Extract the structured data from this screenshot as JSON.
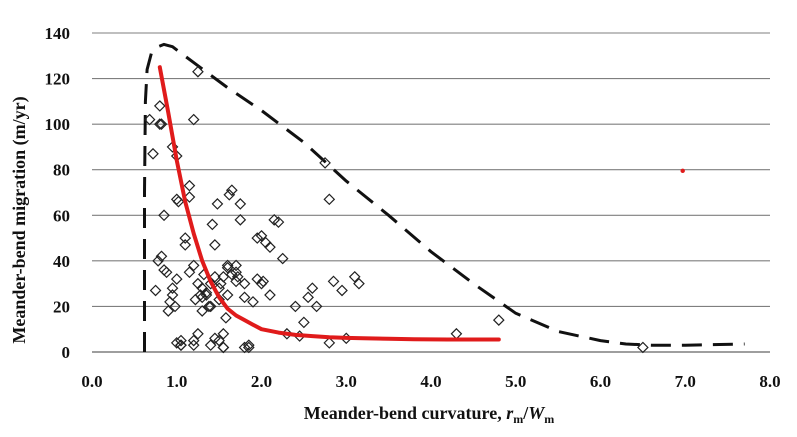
{
  "chart_data": {
    "type": "scatter",
    "xlabel": {
      "prefix": "Meander-bend curvature, ",
      "var1": "r",
      "sub1": "m",
      "slash": "/",
      "var2": "W",
      "sub2": "m"
    },
    "ylabel": "Meander-bend migration (m/yr)",
    "xlim": [
      0,
      8
    ],
    "ylim": [
      0,
      140
    ],
    "x_ticks": [
      "0.0",
      "1.0",
      "2.0",
      "3.0",
      "4.0",
      "5.0",
      "6.0",
      "7.0",
      "8.0"
    ],
    "y_ticks": [
      "0",
      "20",
      "40",
      "60",
      "80",
      "100",
      "120",
      "140"
    ],
    "grid": "horizontal",
    "colors": {
      "points": "#222222",
      "fit_curve": "#e01b1b",
      "envelope": "#111111",
      "grid": "#7f7f7f"
    },
    "series": [
      {
        "kind": "points",
        "x": [
          0.68,
          0.72,
          0.8,
          0.82,
          0.85,
          0.9,
          0.75,
          0.78,
          0.82,
          0.88,
          0.85,
          0.92,
          0.95,
          0.95,
          0.98,
          1.0,
          1.02,
          1.05,
          1.05,
          1.1,
          1.1,
          1.15,
          1.15,
          1.2,
          1.2,
          1.22,
          1.25,
          1.25,
          1.28,
          1.3,
          1.3,
          1.32,
          1.35,
          1.35,
          1.38,
          1.4,
          1.4,
          1.42,
          1.45,
          1.45,
          1.48,
          1.5,
          1.5,
          1.52,
          1.55,
          1.55,
          1.58,
          1.6,
          1.6,
          1.62,
          1.65,
          1.65,
          1.7,
          1.7,
          1.72,
          1.75,
          1.75,
          1.8,
          1.8,
          1.85,
          1.9,
          1.95,
          1.95,
          2.0,
          2.0,
          2.02,
          2.05,
          2.1,
          2.1,
          2.15,
          2.2,
          2.25,
          2.3,
          2.4,
          2.45,
          2.5,
          2.55,
          2.6,
          2.65,
          2.75,
          2.8,
          2.85,
          2.95,
          3.0,
          3.1,
          3.15,
          1.0,
          1.05,
          1.2,
          1.3,
          1.4,
          1.45,
          1.5,
          1.55,
          1.6,
          1.8,
          1.85,
          0.95,
          1.0,
          1.2,
          1.25,
          2.8,
          1.55,
          4.3,
          4.8,
          6.5,
          1.7,
          0.8,
          1.0,
          1.15
        ],
        "y": [
          102,
          87,
          108,
          100,
          36,
          18,
          27,
          40,
          42,
          35,
          60,
          22,
          28,
          25,
          20,
          32,
          66,
          3,
          5,
          50,
          47,
          73,
          35,
          38,
          3,
          23,
          30,
          8,
          25,
          24,
          28,
          34,
          25,
          26,
          20,
          20,
          30,
          56,
          33,
          47,
          65,
          23,
          28,
          30,
          2,
          8,
          15,
          37,
          38,
          69,
          71,
          34,
          38,
          31,
          33,
          58,
          65,
          30,
          24,
          2,
          22,
          50,
          32,
          51,
          30,
          31,
          48,
          46,
          25,
          58,
          57,
          41,
          8,
          20,
          7,
          13,
          24,
          28,
          20,
          83,
          67,
          31,
          27,
          6,
          33,
          30,
          4,
          3,
          5,
          18,
          3,
          6,
          5,
          33,
          25,
          2,
          3,
          90,
          86,
          102,
          123,
          4,
          2,
          8,
          14,
          2,
          35,
          100,
          67,
          68
        ]
      },
      {
        "kind": "fit",
        "x": [
          0.8,
          0.9,
          1.0,
          1.1,
          1.2,
          1.3,
          1.4,
          1.5,
          1.6,
          1.7,
          1.8,
          1.9,
          2.0,
          2.2,
          2.4,
          2.6,
          2.8,
          3.0,
          3.2,
          3.5,
          3.8,
          4.2,
          4.5,
          4.8
        ],
        "y": [
          125,
          105,
          84,
          66,
          52,
          40,
          31,
          24,
          19,
          16,
          14,
          12,
          10,
          8.5,
          7.5,
          7,
          6.5,
          6.2,
          6,
          5.8,
          5.6,
          5.5,
          5.5,
          5.5
        ]
      },
      {
        "kind": "envelope",
        "x": [
          0.62,
          0.62,
          0.62,
          0.63,
          0.65,
          0.7,
          0.78,
          0.85,
          0.95,
          1.2,
          1.6,
          2.0,
          2.5,
          3.0,
          3.5,
          4.0,
          4.5,
          5.0,
          5.5,
          6.0,
          6.3,
          6.6,
          7.0,
          7.7
        ],
        "y": [
          0,
          30,
          70,
          110,
          124,
          131,
          134,
          135,
          134,
          127,
          116,
          106,
          92,
          75,
          60,
          44,
          30,
          17,
          9,
          5,
          3.5,
          3,
          3,
          3.5
        ]
      }
    ],
    "annotations": [
      {
        "kind": "dot",
        "x": 6.97,
        "y": 79.5,
        "color": "#e01b1b"
      }
    ]
  }
}
